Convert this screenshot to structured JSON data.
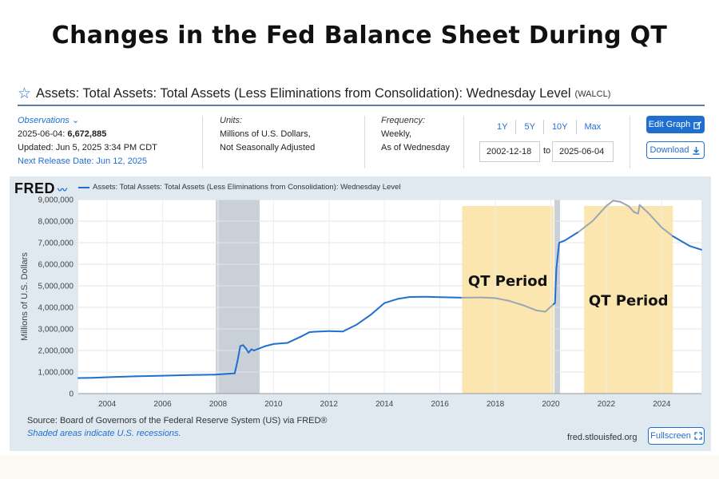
{
  "headline": "Changes in the Fed Balance Sheet During QT",
  "series": {
    "title": "Assets: Total Assets: Total Assets (Less Eliminations from Consolidation): Wednesday Level",
    "code": "(WALCL)"
  },
  "observations": {
    "label": "Observations",
    "date_label": "2025-06-04:",
    "value": "6,672,885",
    "updated": "Updated: Jun 5, 2025 3:34 PM CDT",
    "next_release": "Next Release Date: Jun 12, 2025"
  },
  "units": {
    "label": "Units:",
    "line1": "Millions of U.S. Dollars,",
    "line2": "Not Seasonally Adjusted"
  },
  "frequency": {
    "label": "Frequency:",
    "line1": "Weekly,",
    "line2": "As of Wednesday"
  },
  "ranges": [
    "1Y",
    "5Y",
    "10Y",
    "Max"
  ],
  "date_range": {
    "start": "2002-12-18",
    "to_label": "to",
    "end": "2025-06-04"
  },
  "buttons": {
    "edit": "Edit Graph",
    "download": "Download",
    "fullscreen": "Fullscreen"
  },
  "logo": "FRED",
  "legend_label": "Assets: Total Assets: Total Assets (Less Eliminations from Consolidation): Wednesday Level",
  "footer": {
    "source": "Source: Board of Governors of the Federal Reserve System (US) via FRED®",
    "shaded_note": "Shaded areas indicate U.S. recessions.",
    "site": "fred.stlouisfed.org"
  },
  "colors": {
    "series": "#1f6fd1",
    "qt_series": "#9aa6b4",
    "qt_shade": "#fbe6b0",
    "recession": "#c9d0d8",
    "accent": "#1f6fd1"
  },
  "chart_data": {
    "type": "line",
    "ylabel": "Millions of U.S. Dollars",
    "xlim": [
      2002.96,
      2025.43
    ],
    "ylim": [
      0,
      9000000
    ],
    "yticks": [
      0,
      1000000,
      2000000,
      3000000,
      4000000,
      5000000,
      6000000,
      7000000,
      8000000,
      9000000
    ],
    "ytick_labels": [
      "0",
      "1,000,000",
      "2,000,000",
      "3,000,000",
      "4,000,000",
      "5,000,000",
      "6,000,000",
      "7,000,000",
      "8,000,000",
      "9,000,000"
    ],
    "xticks": [
      2004,
      2006,
      2008,
      2010,
      2012,
      2014,
      2016,
      2018,
      2020,
      2022,
      2024
    ],
    "recessions": [
      [
        2007.92,
        2009.5
      ],
      [
        2020.13,
        2020.33
      ]
    ],
    "annotations": [
      {
        "label": "QT Period",
        "start": 2016.8,
        "end": 2020.1
      },
      {
        "label": "QT Period",
        "start": 2021.2,
        "end": 2024.4
      }
    ],
    "series": [
      {
        "x": [
          2002.96,
          2003.5,
          2004,
          2005,
          2006,
          2007,
          2007.9,
          2008.6,
          2008.7,
          2008.8,
          2008.9,
          2009.0,
          2009.1,
          2009.2,
          2009.3,
          2009.5,
          2009.7,
          2010,
          2010.5,
          2011,
          2011.3,
          2011.5,
          2012,
          2012.5,
          2013,
          2013.5,
          2014,
          2014.5,
          2014.9,
          2015.5,
          2016,
          2016.5,
          2016.8,
          2017.5,
          2018,
          2018.5,
          2019,
          2019.5,
          2019.8,
          2020.1,
          2020.15,
          2020.2,
          2020.3,
          2020.5,
          2021,
          2021.5,
          2022,
          2022.25,
          2022.5,
          2022.8,
          2023.0,
          2023.15,
          2023.2,
          2023.5,
          2024,
          2024.4,
          2025,
          2025.43
        ],
        "y": [
          720000,
          730000,
          760000,
          800000,
          830000,
          860000,
          880000,
          940000,
          1500000,
          2200000,
          2250000,
          2100000,
          1900000,
          2050000,
          2000000,
          2100000,
          2200000,
          2300000,
          2350000,
          2650000,
          2850000,
          2870000,
          2900000,
          2880000,
          3200000,
          3650000,
          4200000,
          4400000,
          4480000,
          4490000,
          4470000,
          4460000,
          4450000,
          4460000,
          4430000,
          4300000,
          4100000,
          3850000,
          3800000,
          4150000,
          4200000,
          5800000,
          7000000,
          7100000,
          7500000,
          8000000,
          8700000,
          8950000,
          8900000,
          8700000,
          8420000,
          8350000,
          8750000,
          8400000,
          7700000,
          7300000,
          6850000,
          6672885
        ]
      }
    ]
  }
}
